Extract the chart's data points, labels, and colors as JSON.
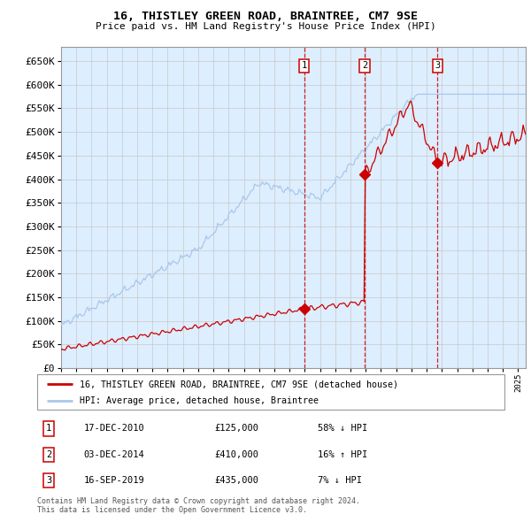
{
  "title": "16, THISTLEY GREEN ROAD, BRAINTREE, CM7 9SE",
  "subtitle": "Price paid vs. HM Land Registry's House Price Index (HPI)",
  "hpi_color": "#aac8e8",
  "price_color": "#cc0000",
  "background_color": "#ddeeff",
  "purchases": [
    {
      "date_num": 2010.96,
      "price": 125000,
      "label": "1"
    },
    {
      "date_num": 2014.92,
      "price": 410000,
      "label": "2"
    },
    {
      "date_num": 2019.71,
      "price": 435000,
      "label": "3"
    }
  ],
  "purchase_dates_str": [
    "17-DEC-2010",
    "03-DEC-2014",
    "16-SEP-2019"
  ],
  "purchase_prices_str": [
    "£125,000",
    "£410,000",
    "£435,000"
  ],
  "purchase_hpi_str": [
    "58% ↓ HPI",
    "16% ↑ HPI",
    "7% ↓ HPI"
  ],
  "legend_line1": "16, THISTLEY GREEN ROAD, BRAINTREE, CM7 9SE (detached house)",
  "legend_line2": "HPI: Average price, detached house, Braintree",
  "footer1": "Contains HM Land Registry data © Crown copyright and database right 2024.",
  "footer2": "This data is licensed under the Open Government Licence v3.0.",
  "xmin": 1995.0,
  "xmax": 2025.5,
  "ymin": 0,
  "ymax": 680000,
  "yticks": [
    0,
    50000,
    100000,
    150000,
    200000,
    250000,
    300000,
    350000,
    400000,
    450000,
    500000,
    550000,
    600000,
    650000
  ]
}
